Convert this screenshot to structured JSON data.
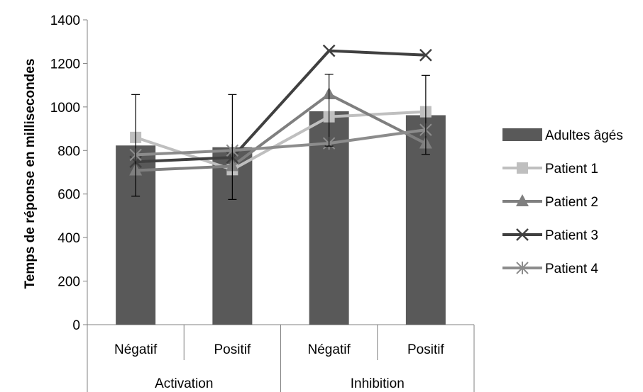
{
  "chart_data": {
    "type": "bar",
    "title": "",
    "xlabel": "",
    "ylabel": "Temps de réponse en millisecondes",
    "ylim": [
      0,
      1400
    ],
    "yticks": [
      0,
      200,
      400,
      600,
      800,
      1000,
      1200,
      1400
    ],
    "categories": [
      "Négatif",
      "Positif",
      "Négatif",
      "Positif"
    ],
    "groups": [
      {
        "label": "Activation",
        "span": 2
      },
      {
        "label": "Inhibition",
        "span": 2
      }
    ],
    "grid": false,
    "legend_position": "right",
    "series": [
      {
        "name": "Adultes âgés",
        "kind": "bar",
        "color": "#595959",
        "values": [
          823,
          815,
          980,
          962
        ],
        "error_upper": [
          1057,
          1057,
          1150,
          1145
        ],
        "error_lower": [
          590,
          575,
          820,
          782
        ]
      },
      {
        "name": "Patient 1",
        "kind": "line",
        "marker": "square",
        "color": "#bfbfbf",
        "values": [
          860,
          712,
          955,
          978
        ]
      },
      {
        "name": "Patient 2",
        "kind": "line",
        "marker": "triangle",
        "color": "#7f7f7f",
        "values": [
          708,
          728,
          1058,
          832
        ]
      },
      {
        "name": "Patient 3",
        "kind": "line",
        "marker": "x",
        "color": "#404040",
        "values": [
          748,
          768,
          1258,
          1238
        ]
      },
      {
        "name": "Patient 4",
        "kind": "line",
        "marker": "asterisk",
        "color": "#8c8c8c",
        "values": [
          780,
          800,
          833,
          895
        ]
      }
    ]
  }
}
